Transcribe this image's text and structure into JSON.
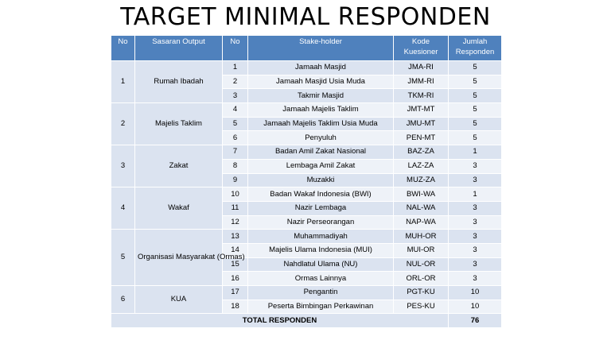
{
  "title": "TARGET MINIMAL RESPONDEN",
  "headers": {
    "no": "No",
    "sasaran": "Sasaran Output",
    "no2": "No",
    "stakeholder": "Stake-holder",
    "kode_line1": "Kode",
    "kode_line2": "Kuesioner",
    "jumlah_line1": "Jumlah",
    "jumlah_line2": "Responden"
  },
  "groups": [
    {
      "no": "1",
      "sasaran": "Rumah Ibadah",
      "rows": [
        {
          "no": "1",
          "stakeholder": "Jamaah Masjid",
          "kode": "JMA-RI",
          "jumlah": "5"
        },
        {
          "no": "2",
          "stakeholder": "Jamaah Masjid Usia Muda",
          "kode": "JMM-RI",
          "jumlah": "5"
        },
        {
          "no": "3",
          "stakeholder": "Takmir Masjid",
          "kode": "TKM-RI",
          "jumlah": "5"
        }
      ]
    },
    {
      "no": "2",
      "sasaran": "Majelis Taklim",
      "rows": [
        {
          "no": "4",
          "stakeholder": "Jamaah Majelis Taklim",
          "kode": "JMT-MT",
          "jumlah": "5"
        },
        {
          "no": "5",
          "stakeholder": "Jamaah Majelis Taklim Usia Muda",
          "kode": "JMU-MT",
          "jumlah": "5"
        },
        {
          "no": "6",
          "stakeholder": "Penyuluh",
          "kode": "PEN-MT",
          "jumlah": "5"
        }
      ]
    },
    {
      "no": "3",
      "sasaran": "Zakat",
      "rows": [
        {
          "no": "7",
          "stakeholder": "Badan Amil Zakat Nasional",
          "kode": "BAZ-ZA",
          "jumlah": "1"
        },
        {
          "no": "8",
          "stakeholder": "Lembaga Amil Zakat",
          "kode": "LAZ-ZA",
          "jumlah": "3"
        },
        {
          "no": "9",
          "stakeholder": "Muzakki",
          "kode": "MUZ-ZA",
          "jumlah": "3"
        }
      ]
    },
    {
      "no": "4",
      "sasaran": "Wakaf",
      "rows": [
        {
          "no": "10",
          "stakeholder": "Badan Wakaf Indonesia (BWI)",
          "kode": "BWI-WA",
          "jumlah": "1"
        },
        {
          "no": "11",
          "stakeholder": "Nazir Lembaga",
          "kode": "NAL-WA",
          "jumlah": "3"
        },
        {
          "no": "12",
          "stakeholder": "Nazir Perseorangan",
          "kode": "NAP-WA",
          "jumlah": "3"
        }
      ]
    },
    {
      "no": "5",
      "sasaran": "Organisasi Masyarakat (Ormas)",
      "rows": [
        {
          "no": "13",
          "stakeholder": "Muhammadiyah",
          "kode": "MUH-OR",
          "jumlah": "3"
        },
        {
          "no": "14",
          "stakeholder": "Majelis Ulama Indonesia (MUI)",
          "kode": "MUI-OR",
          "jumlah": "3"
        },
        {
          "no": "15",
          "stakeholder": "Nahdlatul Ulama (NU)",
          "kode": "NUL-OR",
          "jumlah": "3"
        },
        {
          "no": "16",
          "stakeholder": "Ormas Lainnya",
          "kode": "ORL-OR",
          "jumlah": "3"
        }
      ]
    },
    {
      "no": "6",
      "sasaran": "KUA",
      "rows": [
        {
          "no": "17",
          "stakeholder": "Pengantin",
          "kode": "PGT-KU",
          "jumlah": "10"
        },
        {
          "no": "18",
          "stakeholder": "Peserta Bimbingan Perkawinan",
          "kode": "PES-KU",
          "jumlah": "10"
        }
      ]
    }
  ],
  "total": {
    "label": "TOTAL RESPONDEN",
    "value": "76"
  },
  "colors": {
    "header": "#4f81bd",
    "row_dark": "#dbe3f0",
    "row_light": "#eef2f8"
  }
}
